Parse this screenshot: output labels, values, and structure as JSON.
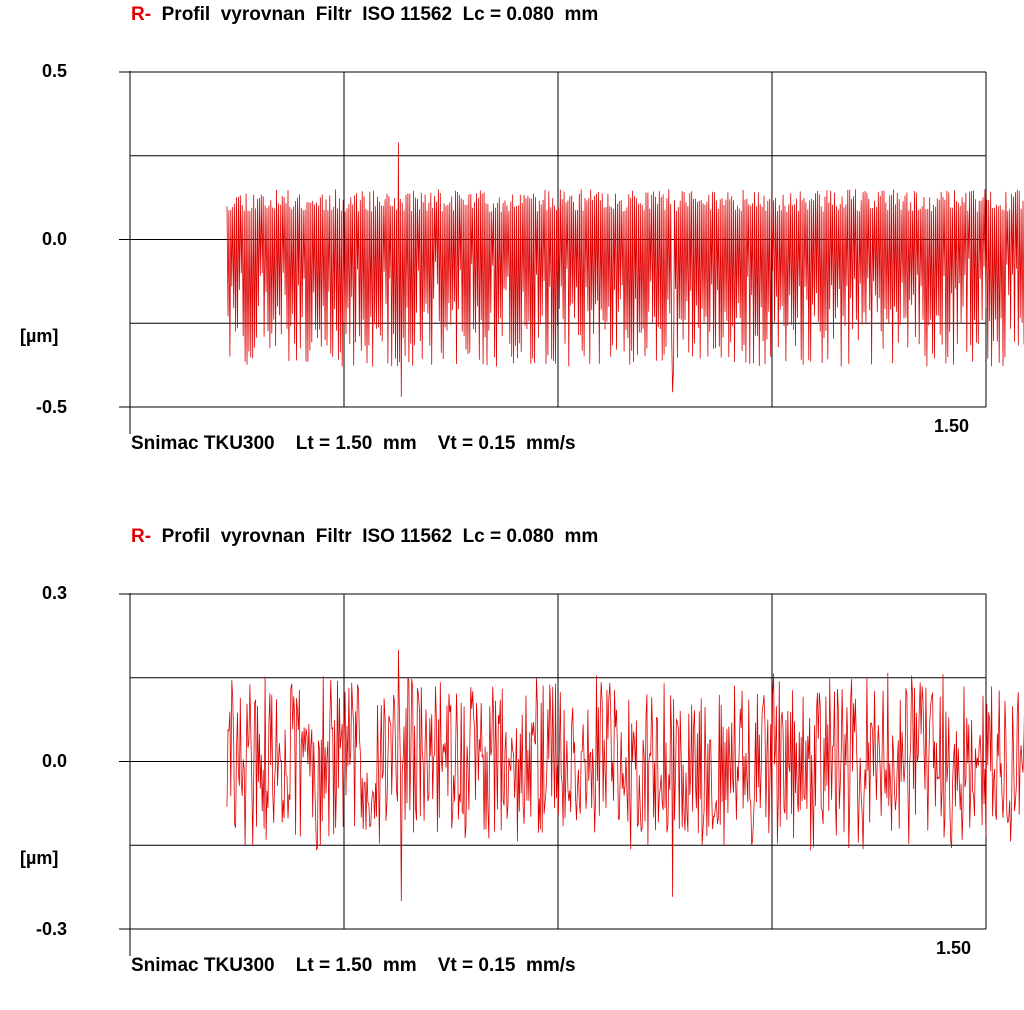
{
  "chart_data": [
    {
      "type": "line",
      "title_prefix": "R-",
      "title": "Profil  vyrovnan  Filtr  ISO 11562  Lc = 0.080  mm",
      "ylabel": "[µm]",
      "ylim": [
        -0.5,
        0.5
      ],
      "y_ticks": [
        "0.5",
        "0.0",
        "-0.5"
      ],
      "xlim": [
        0,
        1.5
      ],
      "x_end_label": "1.50",
      "footer": "Snimac TKU300    Lt = 1.50  mm    Vt = 0.15  mm/s",
      "grid": true,
      "series": [
        {
          "color": "#e00000",
          "x_start": 0.17,
          "x_end": 1.67,
          "samples": 900,
          "peak_max": 0.29,
          "valley_min": -0.47,
          "envelope_upper": 0.15,
          "envelope_lower": -0.38,
          "seed": 11
        }
      ]
    },
    {
      "type": "line",
      "title_prefix": "R-",
      "title": "Profil  vyrovnan  Filtr  ISO 11562  Lc = 0.080  mm",
      "ylabel": "[µm]",
      "ylim": [
        -0.3,
        0.3
      ],
      "y_ticks": [
        "0.3",
        "0.0",
        "-0.3"
      ],
      "xlim": [
        0,
        1.5
      ],
      "x_end_label": "1.50",
      "footer": "Snimac TKU300    Lt = 1.50  mm    Vt = 0.15  mm/s",
      "grid": true,
      "series": [
        {
          "color": "#e00000",
          "x_start": 0.17,
          "x_end": 1.67,
          "samples": 900,
          "peak_max": 0.2,
          "valley_min": -0.25,
          "envelope_upper": 0.13,
          "envelope_lower": -0.16,
          "seed": 29
        }
      ]
    }
  ]
}
